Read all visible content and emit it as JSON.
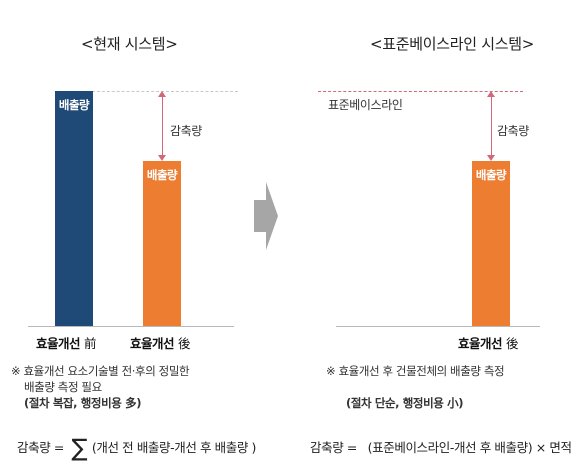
{
  "left": {
    "title": "<현재 시스템>",
    "bar_tall_label": "배출량",
    "bar_short_label": "배출량",
    "reduction_label": "감축량",
    "category_before": "효율개선",
    "category_before_hanja": "前",
    "category_after": "효율개선",
    "category_after_hanja": "後",
    "note_line1": "※ 효율개선 요소기술별 전·후의 정밀한",
    "note_line2": "배출량 측정 필요",
    "note_line3_prefix": "(절차 복잡, 행정비용 ",
    "note_line3_bold": "多",
    "note_line3_suffix": ")",
    "formula_lhs": "감축량 =",
    "formula_sigma": "∑",
    "formula_rhs": "(개선 전 배출량-개선 후 배출량 )"
  },
  "right": {
    "title": "<표준베이스라인 시스템>",
    "baseline_label": "표준베이스라인",
    "reduction_label": "감축량",
    "bar_label": "배출량",
    "category_after": "효율개선",
    "category_after_hanja": "後",
    "note_line1": "※ 효율개선 후 건물전체의 배출량 측정",
    "note_line2_prefix": "(절차 단순, 행정비용 ",
    "note_line2_bold": "小",
    "note_line2_suffix": ")",
    "formula": "감축량 =   (표준베이스라인-개선 후 배출량) × 면적"
  },
  "colors": {
    "navy": "#1f4a78",
    "orange": "#ed7d31",
    "arrow": "#d06a7a",
    "transition_arrow": "#a6a6a6"
  }
}
